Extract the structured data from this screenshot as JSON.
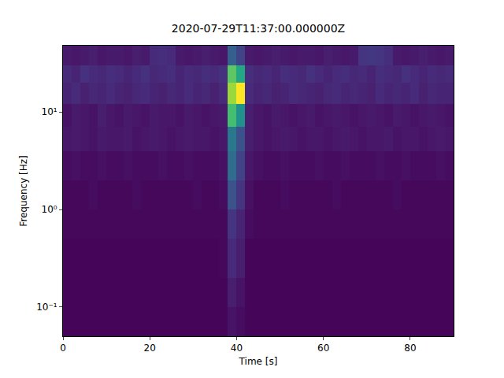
{
  "chart_data": {
    "type": "heatmap",
    "title": "2020-07-29T11:37:00.000000Z",
    "x_label": "Time [s]",
    "y_label": "Frequency [Hz]",
    "log": "y",
    "grid": false,
    "xlim": [
      0,
      90
    ],
    "ylim": [
      0.05,
      48
    ],
    "xticks": [
      0,
      20,
      40,
      60,
      80
    ],
    "yticks": [
      {
        "value": 0.1,
        "label": "10⁻¹"
      },
      {
        "value": 1,
        "label": "10⁰"
      },
      {
        "value": 10,
        "label": "10¹"
      }
    ],
    "zlim": [
      0,
      1
    ],
    "x": [
      0,
      2,
      4,
      6,
      8,
      10,
      12,
      14,
      16,
      18,
      20,
      22,
      24,
      26,
      28,
      30,
      32,
      34,
      36,
      38,
      40,
      42,
      44,
      46,
      48,
      50,
      52,
      54,
      56,
      58,
      60,
      62,
      64,
      66,
      68,
      70,
      72,
      74,
      76,
      78,
      80,
      82,
      84,
      86,
      88,
      90
    ],
    "y": [
      0.05,
      0.1,
      0.2,
      0.5,
      1,
      2,
      4,
      7,
      12,
      20,
      30,
      48
    ],
    "z": [
      [
        0.01,
        0.01,
        0.01,
        0.01,
        0.01,
        0.01,
        0.01,
        0.01,
        0.01,
        0.01,
        0.01,
        0.01,
        0.01,
        0.01,
        0.01,
        0.01,
        0.01,
        0.01,
        0.01,
        0.05,
        0.03,
        0.01,
        0.01,
        0.01,
        0.01,
        0.01,
        0.01,
        0.01,
        0.01,
        0.01,
        0.01,
        0.01,
        0.01,
        0.01,
        0.01,
        0.01,
        0.01,
        0.01,
        0.01,
        0.01,
        0.01,
        0.01,
        0.01,
        0.01,
        0.01
      ],
      [
        0.01,
        0.01,
        0.01,
        0.01,
        0.01,
        0.01,
        0.01,
        0.01,
        0.01,
        0.01,
        0.01,
        0.01,
        0.01,
        0.01,
        0.01,
        0.01,
        0.01,
        0.01,
        0.01,
        0.08,
        0.05,
        0.01,
        0.01,
        0.01,
        0.01,
        0.01,
        0.01,
        0.01,
        0.01,
        0.01,
        0.01,
        0.01,
        0.01,
        0.01,
        0.01,
        0.01,
        0.01,
        0.01,
        0.01,
        0.01,
        0.01,
        0.01,
        0.01,
        0.01,
        0.01
      ],
      [
        0.01,
        0.01,
        0.01,
        0.01,
        0.01,
        0.01,
        0.01,
        0.01,
        0.01,
        0.01,
        0.01,
        0.01,
        0.01,
        0.01,
        0.01,
        0.01,
        0.01,
        0.01,
        0.02,
        0.12,
        0.08,
        0.01,
        0.01,
        0.01,
        0.01,
        0.01,
        0.01,
        0.01,
        0.01,
        0.01,
        0.01,
        0.01,
        0.01,
        0.01,
        0.01,
        0.01,
        0.01,
        0.01,
        0.01,
        0.01,
        0.01,
        0.01,
        0.01,
        0.01,
        0.01
      ],
      [
        0.02,
        0.02,
        0.02,
        0.02,
        0.02,
        0.02,
        0.02,
        0.02,
        0.02,
        0.02,
        0.02,
        0.02,
        0.02,
        0.02,
        0.02,
        0.02,
        0.02,
        0.02,
        0.02,
        0.15,
        0.1,
        0.03,
        0.02,
        0.02,
        0.02,
        0.02,
        0.02,
        0.02,
        0.02,
        0.02,
        0.02,
        0.02,
        0.02,
        0.02,
        0.02,
        0.02,
        0.02,
        0.02,
        0.02,
        0.02,
        0.02,
        0.02,
        0.02,
        0.02,
        0.02
      ],
      [
        0.02,
        0.02,
        0.02,
        0.03,
        0.02,
        0.02,
        0.02,
        0.02,
        0.03,
        0.02,
        0.02,
        0.02,
        0.02,
        0.02,
        0.02,
        0.03,
        0.02,
        0.02,
        0.03,
        0.25,
        0.15,
        0.04,
        0.02,
        0.02,
        0.02,
        0.03,
        0.02,
        0.02,
        0.02,
        0.02,
        0.02,
        0.03,
        0.02,
        0.02,
        0.02,
        0.02,
        0.02,
        0.02,
        0.03,
        0.02,
        0.02,
        0.02,
        0.02,
        0.02,
        0.02
      ],
      [
        0.03,
        0.04,
        0.03,
        0.03,
        0.04,
        0.03,
        0.03,
        0.04,
        0.03,
        0.03,
        0.03,
        0.04,
        0.03,
        0.03,
        0.04,
        0.03,
        0.03,
        0.03,
        0.04,
        0.35,
        0.2,
        0.06,
        0.04,
        0.03,
        0.03,
        0.04,
        0.03,
        0.03,
        0.03,
        0.04,
        0.03,
        0.03,
        0.04,
        0.03,
        0.03,
        0.03,
        0.04,
        0.03,
        0.03,
        0.04,
        0.03,
        0.03,
        0.03,
        0.04,
        0.03
      ],
      [
        0.06,
        0.07,
        0.06,
        0.05,
        0.07,
        0.06,
        0.06,
        0.07,
        0.05,
        0.06,
        0.07,
        0.06,
        0.05,
        0.06,
        0.07,
        0.06,
        0.06,
        0.05,
        0.06,
        0.4,
        0.25,
        0.08,
        0.06,
        0.05,
        0.06,
        0.07,
        0.06,
        0.05,
        0.06,
        0.06,
        0.05,
        0.06,
        0.07,
        0.06,
        0.05,
        0.06,
        0.06,
        0.07,
        0.05,
        0.06,
        0.06,
        0.05,
        0.06,
        0.07,
        0.06
      ],
      [
        0.05,
        0.07,
        0.06,
        0.05,
        0.08,
        0.06,
        0.05,
        0.07,
        0.06,
        0.05,
        0.07,
        0.06,
        0.06,
        0.05,
        0.07,
        0.06,
        0.05,
        0.06,
        0.07,
        0.7,
        0.5,
        0.08,
        0.06,
        0.05,
        0.07,
        0.06,
        0.05,
        0.06,
        0.07,
        0.05,
        0.06,
        0.07,
        0.06,
        0.05,
        0.06,
        0.07,
        0.06,
        0.05,
        0.07,
        0.06,
        0.05,
        0.06,
        0.07,
        0.06,
        0.05
      ],
      [
        0.1,
        0.12,
        0.09,
        0.11,
        0.1,
        0.12,
        0.1,
        0.09,
        0.11,
        0.12,
        0.1,
        0.09,
        0.11,
        0.1,
        0.12,
        0.1,
        0.11,
        0.09,
        0.12,
        0.85,
        1.0,
        0.12,
        0.1,
        0.11,
        0.09,
        0.1,
        0.12,
        0.11,
        0.1,
        0.09,
        0.11,
        0.12,
        0.1,
        0.11,
        0.1,
        0.09,
        0.12,
        0.1,
        0.11,
        0.1,
        0.12,
        0.09,
        0.11,
        0.1,
        0.1
      ],
      [
        0.12,
        0.1,
        0.14,
        0.12,
        0.11,
        0.13,
        0.12,
        0.1,
        0.12,
        0.14,
        0.11,
        0.12,
        0.13,
        0.1,
        0.12,
        0.11,
        0.13,
        0.12,
        0.14,
        0.75,
        0.6,
        0.13,
        0.11,
        0.12,
        0.1,
        0.13,
        0.12,
        0.11,
        0.14,
        0.12,
        0.1,
        0.12,
        0.13,
        0.11,
        0.12,
        0.1,
        0.13,
        0.12,
        0.11,
        0.14,
        0.12,
        0.1,
        0.12,
        0.11,
        0.12
      ],
      [
        0.07,
        0.06,
        0.07,
        0.08,
        0.06,
        0.07,
        0.07,
        0.06,
        0.08,
        0.07,
        0.12,
        0.13,
        0.12,
        0.07,
        0.06,
        0.07,
        0.08,
        0.07,
        0.06,
        0.3,
        0.2,
        0.07,
        0.06,
        0.07,
        0.08,
        0.07,
        0.06,
        0.07,
        0.07,
        0.06,
        0.08,
        0.07,
        0.06,
        0.07,
        0.15,
        0.16,
        0.15,
        0.13,
        0.07,
        0.06,
        0.07,
        0.08,
        0.07,
        0.06,
        0.07
      ]
    ]
  }
}
